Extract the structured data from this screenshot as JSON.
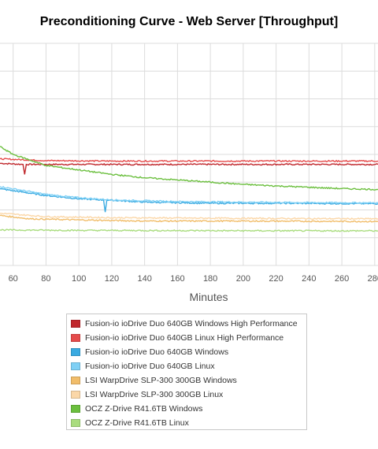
{
  "chart_data": {
    "type": "line",
    "title": "Preconditioning Curve - Web Server [Throughput]",
    "xlabel": "Minutes",
    "ylabel": "",
    "xlim": [
      52,
      282
    ],
    "ylim": [
      0,
      10
    ],
    "xticks": [
      60,
      80,
      100,
      120,
      140,
      160,
      180,
      200,
      220,
      240,
      260,
      280
    ],
    "grid": true,
    "legend_position": "bottom",
    "series": [
      {
        "name": "Fusion-io ioDrive Duo 640GB Windows High Performance",
        "color": "#c0282d",
        "points": [
          [
            52,
            4.6
          ],
          [
            66,
            4.55
          ],
          [
            67,
            4.1
          ],
          [
            68,
            4.55
          ],
          [
            80,
            4.55
          ],
          [
            120,
            4.55
          ],
          [
            160,
            4.55
          ],
          [
            200,
            4.55
          ],
          [
            240,
            4.55
          ],
          [
            282,
            4.55
          ]
        ]
      },
      {
        "name": "Fusion-io ioDrive Duo 640GB Linux High Performance",
        "color": "#e54b4b",
        "points": [
          [
            52,
            4.8
          ],
          [
            80,
            4.72
          ],
          [
            120,
            4.7
          ],
          [
            160,
            4.7
          ],
          [
            200,
            4.7
          ],
          [
            240,
            4.7
          ],
          [
            282,
            4.7
          ]
        ]
      },
      {
        "name": "Fusion-io ioDrive Duo 640GB Windows",
        "color": "#3aaae1",
        "points": [
          [
            52,
            3.45
          ],
          [
            80,
            3.15
          ],
          [
            100,
            3.0
          ],
          [
            115,
            2.95
          ],
          [
            116,
            2.4
          ],
          [
            117,
            2.95
          ],
          [
            140,
            2.85
          ],
          [
            180,
            2.8
          ],
          [
            220,
            2.8
          ],
          [
            282,
            2.78
          ]
        ]
      },
      {
        "name": "Fusion-io ioDrive Duo 640GB Linux",
        "color": "#7fd0f5",
        "points": [
          [
            52,
            3.55
          ],
          [
            80,
            3.2
          ],
          [
            100,
            3.05
          ],
          [
            120,
            2.95
          ],
          [
            160,
            2.88
          ],
          [
            200,
            2.85
          ],
          [
            240,
            2.83
          ],
          [
            282,
            2.82
          ]
        ]
      },
      {
        "name": "LSI WarpDrive SLP-300 300GB Windows",
        "color": "#f1bd6a",
        "points": [
          [
            52,
            2.25
          ],
          [
            70,
            2.1
          ],
          [
            100,
            2.05
          ],
          [
            140,
            2.0
          ],
          [
            200,
            2.0
          ],
          [
            282,
            1.98
          ]
        ]
      },
      {
        "name": "LSI WarpDrive SLP-300 300GB Linux",
        "color": "#fbd7a8",
        "points": [
          [
            52,
            2.35
          ],
          [
            80,
            2.2
          ],
          [
            120,
            2.15
          ],
          [
            200,
            2.12
          ],
          [
            282,
            2.1
          ]
        ]
      },
      {
        "name": "OCZ Z-Drive R41.6TB Windows",
        "color": "#6bbf3e",
        "points": [
          [
            52,
            5.35
          ],
          [
            60,
            5.0
          ],
          [
            70,
            4.75
          ],
          [
            80,
            4.5
          ],
          [
            100,
            4.3
          ],
          [
            120,
            4.1
          ],
          [
            140,
            3.95
          ],
          [
            160,
            3.85
          ],
          [
            180,
            3.75
          ],
          [
            200,
            3.65
          ],
          [
            220,
            3.58
          ],
          [
            240,
            3.52
          ],
          [
            260,
            3.46
          ],
          [
            282,
            3.42
          ]
        ]
      },
      {
        "name": "OCZ Z-Drive R41.6TB Linux",
        "color": "#a9dc7e",
        "points": [
          [
            52,
            1.6
          ],
          [
            100,
            1.58
          ],
          [
            160,
            1.57
          ],
          [
            220,
            1.56
          ],
          [
            282,
            1.56
          ]
        ]
      }
    ]
  }
}
